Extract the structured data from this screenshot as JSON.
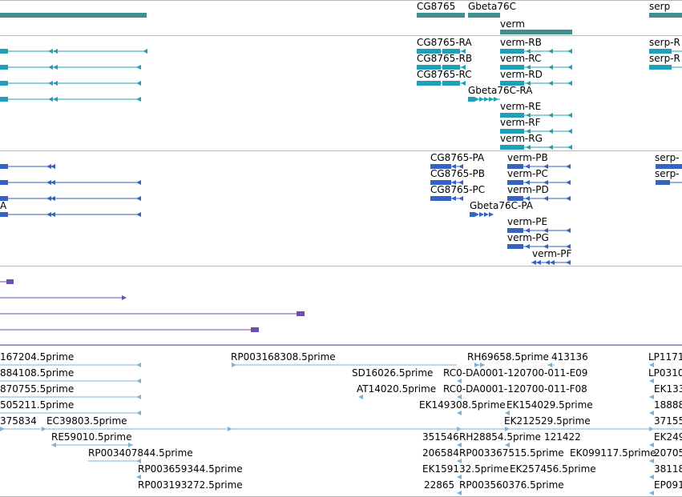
{
  "colors": {
    "gene": "#3f8f8f",
    "transcript": "#1fa0b8",
    "protein": "#3462c5",
    "purple": "#6c4fb0",
    "est": "#7fb2d2",
    "divider": "#b8b8b8"
  },
  "tracks": {
    "genes": [
      "CG8765",
      "Gbeta76C",
      "verm",
      "serp"
    ],
    "transcripts": [
      "CG8765-RA",
      "verm-RB",
      "serp-R",
      "CG8765-RB",
      "verm-RC",
      "serp-R",
      "CG8765-RC",
      "verm-RD",
      "Gbeta76C-RA",
      "verm-RE",
      "verm-RF",
      "verm-RG"
    ],
    "proteins": [
      "CG8765-PA",
      "verm-PB",
      "serp-",
      "CG8765-PB",
      "verm-PC",
      "serp-",
      "CG8765-PC",
      "verm-PD",
      "Gbeta76C-PA",
      "A",
      "verm-PE",
      "verm-PG",
      "verm-PF"
    ],
    "ests": [
      "167204.5prime",
      "RP003168308.5prime",
      "RH69658.5prime",
      "413136",
      "LP1171",
      "884108.5prime",
      "SD16026.5prime",
      "RC0-DA0001-120700-011-E09",
      "LP0310",
      "870755.5prime",
      "AT14020.5prime",
      "RC0-DA0001-120700-011-F08",
      "EK133",
      "505211.5prime",
      "EK149308.5prime",
      "EK154029.5prime",
      "18888",
      "375834",
      "EC39803.5prime",
      "EK212529.5prime",
      "37155",
      "RE59010.5prime",
      "351546",
      "RH28854.5prime",
      "121422",
      "EK249",
      "RP003407844.5prime",
      "206584",
      "RP003367515.5prime",
      "EK099117.5prime",
      "20705",
      "RP003659344.5prime",
      "EK159132.5prime",
      "EK257456.5prime",
      "38118",
      "RP003193272.5prime",
      "22865",
      "RP003560376.5prime",
      "EP091"
    ]
  }
}
